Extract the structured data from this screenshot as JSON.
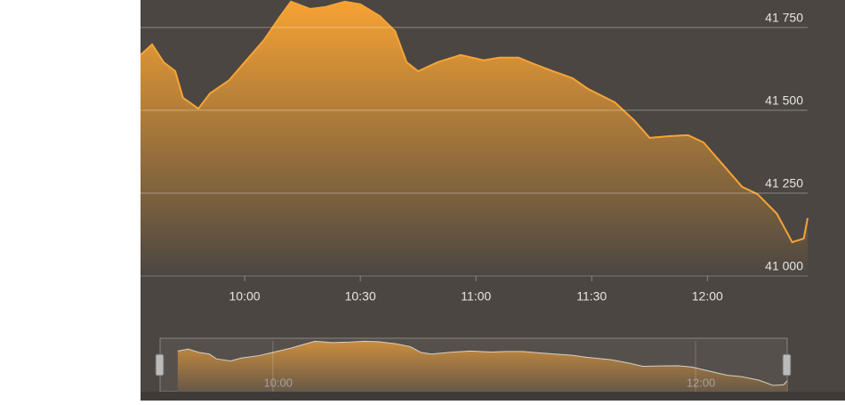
{
  "chart_data": {
    "type": "area",
    "x": [
      573,
      576,
      579,
      582,
      584,
      588,
      591,
      596,
      600,
      605,
      609,
      612,
      617,
      621,
      626,
      630,
      635,
      639,
      642,
      645,
      650,
      656,
      662,
      666,
      671,
      675,
      680,
      685,
      689,
      696,
      701,
      705,
      710,
      715,
      719,
      724,
      729,
      733,
      738,
      742,
      745,
      746
    ],
    "series": [
      {
        "color": "#f5a435",
        "values": [
          41667,
          41699,
          41645,
          41618,
          41538,
          41505,
          41551,
          41591,
          41645,
          41712,
          41780,
          41828,
          41806,
          41812,
          41828,
          41820,
          41785,
          41739,
          41645,
          41618,
          41645,
          41667,
          41651,
          41659,
          41659,
          41640,
          41618,
          41597,
          41565,
          41524,
          41470,
          41417,
          41422,
          41425,
          41403,
          41336,
          41269,
          41247,
          41188,
          41102,
          41113,
          41175
        ]
      }
    ],
    "xlim": [
      573,
      746
    ],
    "ylim": [
      41000,
      41833
    ],
    "xticks": [
      {
        "value": 600,
        "label": "10:00"
      },
      {
        "value": 630,
        "label": "10:30"
      },
      {
        "value": 660,
        "label": "11:00"
      },
      {
        "value": 690,
        "label": "11:30"
      },
      {
        "value": 720,
        "label": "12:00"
      }
    ],
    "yticks": [
      {
        "value": 41000,
        "label": "41 000"
      },
      {
        "value": 41250,
        "label": "41 250"
      },
      {
        "value": 41500,
        "label": "41 500"
      },
      {
        "value": 41750,
        "label": "41 750"
      }
    ],
    "grid": true,
    "navigator": {
      "xlim": [
        568,
        746
      ],
      "xticks": [
        {
          "value": 600,
          "label": "10:00"
        },
        {
          "value": 720,
          "label": "12:00"
        }
      ]
    }
  }
}
